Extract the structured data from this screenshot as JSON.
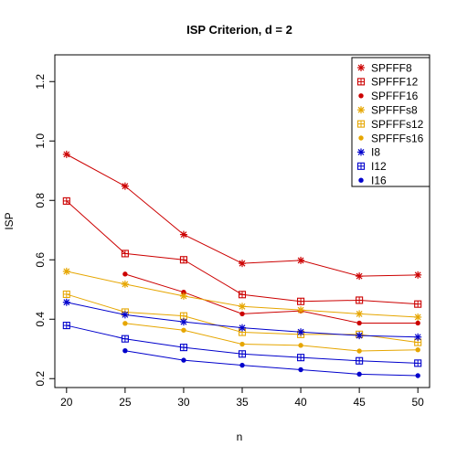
{
  "chart_data": {
    "type": "line",
    "title": "ISP Criterion, d = 2",
    "xlabel": "n",
    "ylabel": "ISP",
    "x": [
      20,
      25,
      30,
      35,
      40,
      45,
      50
    ],
    "xlim": [
      19.0,
      51.0
    ],
    "ylim": [
      0.17,
      1.29
    ],
    "xticks": [
      "20",
      "25",
      "30",
      "35",
      "40",
      "45",
      "50"
    ],
    "yticks": [
      "0.2",
      "0.4",
      "0.6",
      "0.8",
      "1.0",
      "1.2"
    ],
    "legend_position": "top-right",
    "series": [
      {
        "name": "SPFFF8",
        "color": "#CC0000",
        "marker": "asterisk",
        "values": [
          0.955,
          0.848,
          0.685,
          0.588,
          0.598,
          0.545,
          0.549
        ]
      },
      {
        "name": "SPFFF12",
        "color": "#CC0000",
        "marker": "boxplus",
        "values": [
          0.798,
          0.621,
          0.6,
          0.483,
          0.46,
          0.464,
          0.451
        ]
      },
      {
        "name": "SPFFF16",
        "color": "#CC0000",
        "marker": "dot",
        "values": [
          null,
          0.552,
          0.491,
          0.418,
          0.428,
          0.387,
          0.387
        ]
      },
      {
        "name": "SPFFFs8",
        "color": "#E6A600",
        "marker": "asterisk",
        "values": [
          0.561,
          0.518,
          0.478,
          0.443,
          0.431,
          0.418,
          0.407
        ]
      },
      {
        "name": "SPFFFs12",
        "color": "#E6A600",
        "marker": "boxplus",
        "values": [
          0.484,
          0.424,
          0.411,
          0.356,
          0.349,
          0.349,
          0.322
        ]
      },
      {
        "name": "SPFFFs16",
        "color": "#E6A600",
        "marker": "dot",
        "values": [
          null,
          0.386,
          0.363,
          0.316,
          0.312,
          0.293,
          0.297
        ]
      },
      {
        "name": "I8",
        "color": "#0000CC",
        "marker": "asterisk",
        "values": [
          0.457,
          0.415,
          0.391,
          0.371,
          0.357,
          0.345,
          0.34
        ]
      },
      {
        "name": "I12",
        "color": "#0000CC",
        "marker": "boxplus",
        "values": [
          0.379,
          0.334,
          0.305,
          0.283,
          0.271,
          0.26,
          0.252
        ]
      },
      {
        "name": "I16",
        "color": "#0000CC",
        "marker": "dot",
        "values": [
          null,
          0.294,
          0.262,
          0.245,
          0.23,
          0.215,
          0.21
        ]
      }
    ]
  }
}
